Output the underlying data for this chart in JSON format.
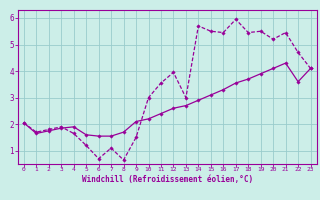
{
  "xlabel": "Windchill (Refroidissement éolien,°C)",
  "xlim": [
    -0.5,
    23.5
  ],
  "ylim": [
    0.5,
    6.3
  ],
  "xticks": [
    0,
    1,
    2,
    3,
    4,
    5,
    6,
    7,
    8,
    9,
    10,
    11,
    12,
    13,
    14,
    15,
    16,
    17,
    18,
    19,
    20,
    21,
    22,
    23
  ],
  "yticks": [
    1,
    2,
    3,
    4,
    5,
    6
  ],
  "bg_color": "#cceee8",
  "line_color": "#990099",
  "grid_color": "#99cccc",
  "line1_x": [
    0,
    1,
    2,
    3,
    4,
    5,
    6,
    7,
    8,
    9,
    10,
    11,
    12,
    13,
    14,
    15,
    16,
    17,
    18,
    19,
    20,
    21,
    22,
    23
  ],
  "line1_y": [
    2.05,
    1.7,
    1.8,
    1.9,
    1.65,
    1.2,
    0.7,
    1.1,
    0.65,
    1.5,
    3.0,
    3.55,
    3.95,
    3.0,
    5.7,
    5.5,
    5.45,
    5.95,
    5.45,
    5.5,
    5.2,
    5.45,
    4.7,
    4.1
  ],
  "line2_x": [
    0,
    1,
    2,
    3,
    4,
    5,
    6,
    7,
    8,
    9,
    10,
    11,
    12,
    13,
    14,
    15,
    16,
    17,
    18,
    19,
    20,
    21,
    22,
    23
  ],
  "line2_y": [
    2.05,
    1.65,
    1.75,
    1.85,
    1.9,
    1.6,
    1.55,
    1.55,
    1.7,
    2.1,
    2.2,
    2.4,
    2.6,
    2.7,
    2.9,
    3.1,
    3.3,
    3.55,
    3.7,
    3.9,
    4.1,
    4.3,
    3.6,
    4.1
  ]
}
